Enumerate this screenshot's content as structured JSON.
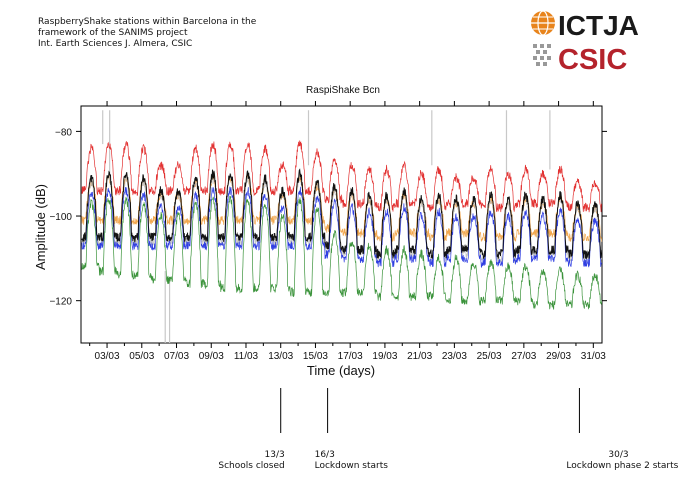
{
  "header": {
    "line1": "RaspberryShake stations within Barcelona in the",
    "line2": "framework of the SANIMS project",
    "line3": "Int. Earth Sciences J. Almera, CSIC"
  },
  "logos": {
    "ictja_text": "ICTJA",
    "csic_text": "CSIC",
    "ictja_color": "#1a1a1a",
    "globe_color": "#e8841c",
    "csic_color": "#b4232c"
  },
  "chart_data": {
    "type": "line",
    "title": "RaspiShake Bcn",
    "xlabel": "Time (days)",
    "ylabel": "Amplitude (dB)",
    "xlim": [
      1.5,
      31.5
    ],
    "ylim": [
      -130,
      -74
    ],
    "xticks": [
      "03/03",
      "05/03",
      "07/03",
      "09/03",
      "11/03",
      "13/03",
      "15/03",
      "17/03",
      "19/03",
      "21/03",
      "23/03",
      "25/03",
      "27/03",
      "29/03",
      "31/03"
    ],
    "xtick_positions": [
      3,
      5,
      7,
      9,
      11,
      13,
      15,
      17,
      19,
      21,
      23,
      25,
      27,
      29,
      31
    ],
    "yticks": [
      -80,
      -100,
      -120
    ],
    "grid": false,
    "legend": "none",
    "series": [
      {
        "color": "#e02020",
        "day_low": [
          -94,
          -94,
          -94,
          -94,
          -94,
          -94,
          -94,
          -94,
          -94,
          -94,
          -94,
          -94,
          -94,
          -94,
          -96,
          -97,
          -97,
          -98,
          -97,
          -97,
          -98,
          -97,
          -97,
          -98,
          -98,
          -97,
          -97,
          -97,
          -98,
          -98
        ],
        "day_high": [
          -84,
          -83,
          -83,
          -84,
          -88,
          -88,
          -84,
          -83,
          -83,
          -83,
          -84,
          -88,
          -83,
          -85,
          -87,
          -88,
          -89,
          -89,
          -88,
          -90,
          -89,
          -91,
          -91,
          -89,
          -90,
          -89,
          -90,
          -89,
          -92,
          -92
        ]
      },
      {
        "color": "#f0a040",
        "day_low": [
          -101,
          -101,
          -101,
          -101,
          -101,
          -101,
          -101,
          -101,
          -101,
          -101,
          -101,
          -101,
          -101,
          -101,
          -103,
          -104,
          -104,
          -105,
          -104,
          -104,
          -105,
          -104,
          -104,
          -105,
          -105,
          -104,
          -104,
          -104,
          -105,
          -105
        ],
        "day_high": [
          -92,
          -91,
          -91,
          -92,
          -95,
          -95,
          -92,
          -91,
          -91,
          -91,
          -92,
          -95,
          -91,
          -93,
          -94,
          -95,
          -96,
          -96,
          -95,
          -97,
          -96,
          -97,
          -97,
          -96,
          -97,
          -96,
          -97,
          -96,
          -98,
          -98
        ]
      },
      {
        "color": "#b8b8b8",
        "day_low": [
          -106,
          -106,
          -106,
          -106,
          -106,
          -106,
          -106,
          -106,
          -106,
          -106,
          -106,
          -106,
          -106,
          -106,
          -108,
          -109,
          -109,
          -110,
          -109,
          -109,
          -110,
          -109,
          -109,
          -110,
          -110,
          -109,
          -109,
          -109,
          -110,
          -110
        ],
        "day_high": [
          -92,
          -91,
          -91,
          -92,
          -95,
          -95,
          -92,
          -91,
          -91,
          -91,
          -92,
          -95,
          -91,
          -93,
          -94,
          -95,
          -96,
          -96,
          -95,
          -97,
          -96,
          -97,
          -97,
          -96,
          -97,
          -96,
          -97,
          -96,
          -98,
          -98
        ]
      },
      {
        "color": "#2030e0",
        "day_low": [
          -107,
          -107,
          -107,
          -107,
          -107,
          -107,
          -107,
          -107,
          -107,
          -107,
          -107,
          -107,
          -107,
          -107,
          -109,
          -110,
          -110,
          -111,
          -110,
          -110,
          -111,
          -110,
          -110,
          -111,
          -111,
          -110,
          -110,
          -110,
          -111,
          -111
        ],
        "day_high": [
          -95,
          -94,
          -94,
          -95,
          -98,
          -98,
          -95,
          -94,
          -94,
          -94,
          -95,
          -98,
          -94,
          -96,
          -97,
          -98,
          -99,
          -99,
          -98,
          -100,
          -99,
          -100,
          -100,
          -99,
          -100,
          -99,
          -100,
          -99,
          -101,
          -101
        ]
      },
      {
        "color": "#000000",
        "day_low": [
          -105,
          -105,
          -105,
          -105,
          -105,
          -105,
          -105,
          -105,
          -105,
          -105,
          -105,
          -105,
          -105,
          -105,
          -107,
          -108,
          -108,
          -109,
          -108,
          -108,
          -109,
          -108,
          -108,
          -109,
          -109,
          -108,
          -108,
          -108,
          -109,
          -109
        ],
        "day_high": [
          -91,
          -90,
          -90,
          -91,
          -94,
          -94,
          -91,
          -90,
          -90,
          -90,
          -91,
          -94,
          -90,
          -92,
          -93,
          -94,
          -95,
          -95,
          -94,
          -96,
          -95,
          -96,
          -96,
          -95,
          -96,
          -95,
          -96,
          -95,
          -97,
          -97
        ]
      },
      {
        "color": "#2a8a2a",
        "day_low": [
          -112,
          -113,
          -114,
          -114,
          -115,
          -115,
          -116,
          -116,
          -117,
          -117,
          -117,
          -117,
          -118,
          -118,
          -118,
          -118,
          -118,
          -119,
          -119,
          -119,
          -119,
          -120,
          -120,
          -120,
          -120,
          -120,
          -121,
          -121,
          -121,
          -121
        ],
        "day_high": [
          -97,
          -96,
          -96,
          -97,
          -100,
          -100,
          -97,
          -96,
          -96,
          -96,
          -97,
          -100,
          -96,
          -98,
          -104,
          -106,
          -107,
          -108,
          -108,
          -109,
          -110,
          -110,
          -111,
          -111,
          -112,
          -112,
          -113,
          -113,
          -114,
          -114
        ]
      }
    ],
    "spikes": [
      {
        "x": 2.75,
        "y": [
          -75,
          -83
        ]
      },
      {
        "x": 3.15,
        "y": [
          -75,
          -91
        ]
      },
      {
        "x": 6.35,
        "y": [
          -113,
          -130
        ]
      },
      {
        "x": 6.6,
        "y": [
          -115,
          -130
        ]
      },
      {
        "x": 14.6,
        "y": [
          -75,
          -88
        ]
      },
      {
        "x": 21.7,
        "y": [
          -75,
          -88
        ]
      },
      {
        "x": 26.0,
        "y": [
          -75,
          -90
        ]
      },
      {
        "x": 28.5,
        "y": [
          -75,
          -89
        ]
      }
    ],
    "annotations": [
      {
        "date": "13/3",
        "label": "Schools closed",
        "x": 13.0
      },
      {
        "date": "16/3",
        "label": "Lockdown starts",
        "x": 15.7
      },
      {
        "date": "30/3",
        "label": "Lockdown phase 2 starts",
        "x": 30.2
      }
    ]
  }
}
